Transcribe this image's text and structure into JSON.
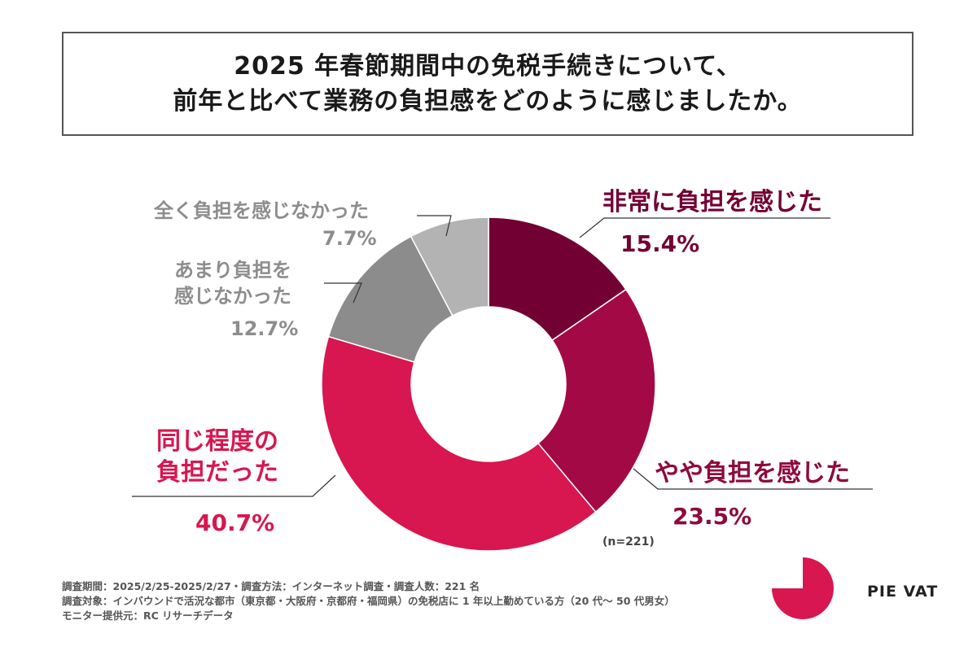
{
  "title": {
    "line1": "2025 年春節期間中の免税手続きについて、",
    "line2": "前年と比べて業務の負担感をどのように感じましたか。"
  },
  "chart_data": {
    "type": "pie",
    "donut": true,
    "sample_size_label": "(n=221)",
    "slices": [
      {
        "label_lines": [
          "非常に負担を感じた"
        ],
        "label": "非常に負担を感じた",
        "value": 15.4,
        "pct_label": "15.4%",
        "color": "#730033",
        "label_color": "#730033"
      },
      {
        "label_lines": [
          "やや負担を感じた"
        ],
        "label": "やや負担を感じた",
        "value": 23.5,
        "pct_label": "23.5%",
        "color": "#a30a45",
        "label_color": "#8e0a3c"
      },
      {
        "label_lines": [
          "同じ程度の",
          "負担だった"
        ],
        "label": "同じ程度の負担だった",
        "value": 40.7,
        "pct_label": "40.7%",
        "color": "#d8164f",
        "label_color": "#d8164f"
      },
      {
        "label_lines": [
          "あまり負担を",
          "感じなかった"
        ],
        "label": "あまり負担を感じなかった",
        "value": 12.7,
        "pct_label": "12.7%",
        "color": "#8c8c8c",
        "label_color": "#8d8d8d"
      },
      {
        "label_lines": [
          "全く負担を感じなかった"
        ],
        "label": "全く負担を感じなかった",
        "value": 7.7,
        "pct_label": "7.7%",
        "color": "#b3b3b3",
        "label_color": "#8d8d8d"
      }
    ]
  },
  "footer": {
    "line1": "調査期間：2025/2/25-2025/2/27・調査方法：インターネット調査・調査人数：221 名",
    "line2": "調査対象：インバウンドで活況な都市（東京都・大阪府・京都府・福岡県）の免税店に 1 年以上勤めている方（20 代〜 50 代男女）",
    "line3": "モニター提供元：RC リサーチデータ"
  },
  "brand": {
    "name": "PIE VAT",
    "logo_color": "#d8164f"
  }
}
